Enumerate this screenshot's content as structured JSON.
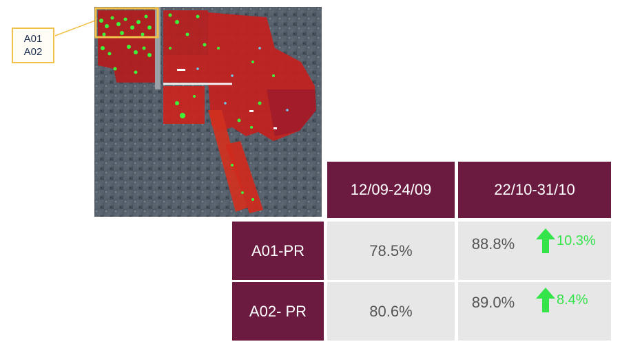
{
  "callout": {
    "line1": "A01",
    "line2": "A02"
  },
  "colors": {
    "header": "#6b1a40",
    "cell": "#e7e7e7",
    "increase": "#35e34a",
    "highlight": "#f3c14a"
  },
  "table": {
    "columns": [
      "12/09-24/09",
      "22/10-31/10"
    ],
    "rows": [
      {
        "label": "A01-PR",
        "period1": "78.5%",
        "period2": "88.8%",
        "change": "10.3%",
        "trend_icon": "arrow-up-icon"
      },
      {
        "label": "A02- PR",
        "period1": "80.6%",
        "period2": "89.0%",
        "change": "8.4%",
        "trend_icon": "arrow-up-icon"
      }
    ]
  }
}
